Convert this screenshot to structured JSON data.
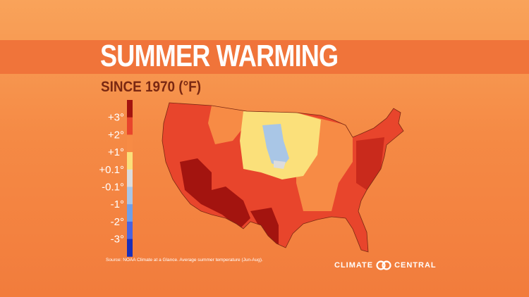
{
  "header": {
    "title": "SUMMER WARMING",
    "subtitle": "SINCE 1970 (°F)"
  },
  "legend": {
    "labels": [
      "+3°",
      "+2°",
      "+1°",
      "+0.1°",
      "-0.1°",
      "-1°",
      "-2°",
      "-3°"
    ],
    "colors": [
      "#a3140f",
      "#e8452c",
      "#f78b45",
      "#fbe07a",
      "#dcdcdc",
      "#a9c6e6",
      "#6f9fe8",
      "#4a63e0",
      "#1b2fb8"
    ]
  },
  "footer": {
    "source": "Source: NOAA Climate at a Glance. Average summer temperature (Jun-Aug).",
    "logo_left": "CLIMATE",
    "logo_right": "CENTRAL"
  }
}
